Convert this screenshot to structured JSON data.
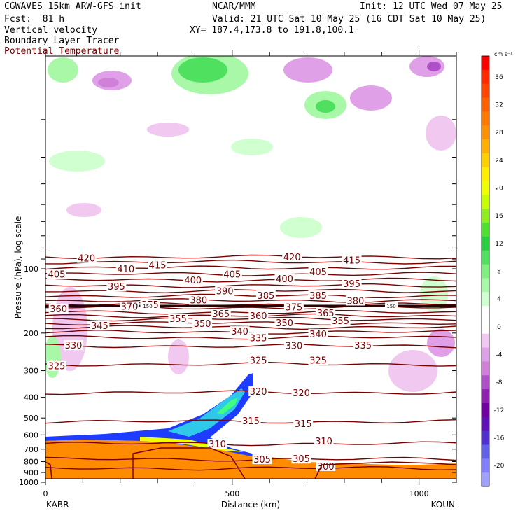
{
  "header": {
    "model": "CGWAVES 15km ARW-GFS init",
    "org": "NCAR/MMM",
    "init": "Init: 12 UTC Wed 07 May 25",
    "fcst": "Fcst:  81 h",
    "valid": "Valid: 21 UTC Sat 10 May 25 (16 CDT Sat 10 May 25)",
    "field1": "Vertical velocity",
    "field2": "Boundary Layer Tracer",
    "field3": "Potential Temperature",
    "xy": "XY= 187.4,173.8 to 191.8,100.1"
  },
  "colors": {
    "theta": "#7a0000",
    "terrain": "#ff8c00",
    "tracer": "#1e3cff"
  },
  "chart_data": {
    "type": "heatmap",
    "xlabel": "Distance (km)",
    "ylabel": "Pressure (hPa), log scale",
    "x_ticks": [
      "0",
      "500",
      "1000"
    ],
    "xlim": [
      0,
      1100
    ],
    "y_ticks": [
      "100",
      "200",
      "300",
      "400",
      "500",
      "600",
      "700",
      "800",
      "900",
      "1000"
    ],
    "y_log_scale": true,
    "x_endpoints": {
      "left": "KABR",
      "right": "KOUN"
    },
    "colorbar": {
      "unit": "cm s⁻¹",
      "levels": [
        {
          "label": "",
          "color": "#ff0000"
        },
        {
          "label": "36",
          "color": "#ff2a00"
        },
        {
          "label": "",
          "color": "#ff4500"
        },
        {
          "label": "32",
          "color": "#ff6000"
        },
        {
          "label": "",
          "color": "#ff7800"
        },
        {
          "label": "28",
          "color": "#ff9000"
        },
        {
          "label": "",
          "color": "#ffb000"
        },
        {
          "label": "24",
          "color": "#ffd000"
        },
        {
          "label": "",
          "color": "#ffee00"
        },
        {
          "label": "20",
          "color": "#f0ff00"
        },
        {
          "label": "",
          "color": "#c8ff00"
        },
        {
          "label": "16",
          "color": "#90ee20"
        },
        {
          "label": "",
          "color": "#50e030"
        },
        {
          "label": "12",
          "color": "#28d040"
        },
        {
          "label": "",
          "color": "#50e060"
        },
        {
          "label": "8",
          "color": "#80f080"
        },
        {
          "label": "",
          "color": "#a8f8a8"
        },
        {
          "label": "4",
          "color": "#d0ffd0"
        },
        {
          "label": "",
          "color": "#ffffff"
        },
        {
          "label": "0",
          "color": "#ffffff"
        },
        {
          "label": "",
          "color": "#f0c8f0"
        },
        {
          "label": "-4",
          "color": "#e0a0e8"
        },
        {
          "label": "",
          "color": "#d080d8"
        },
        {
          "label": "-8",
          "color": "#b050c8"
        },
        {
          "label": "",
          "color": "#9020b0"
        },
        {
          "label": "-12",
          "color": "#7000a0"
        },
        {
          "label": "",
          "color": "#6010b8"
        },
        {
          "label": "-16",
          "color": "#5030d0"
        },
        {
          "label": "",
          "color": "#6060e8"
        },
        {
          "label": "-20",
          "color": "#8080ff"
        },
        {
          "label": "",
          "color": "#a0a0ff"
        }
      ]
    },
    "theta_contour_labels": [
      "420",
      "410",
      "415",
      "405",
      "400",
      "395",
      "390",
      "385",
      "380",
      "375",
      "370",
      "365",
      "360",
      "355",
      "350",
      "345",
      "340",
      "335",
      "330",
      "325",
      "320",
      "315",
      "310",
      "305",
      "300"
    ],
    "theta_lines": [
      {
        "label": "420",
        "p": 88
      },
      {
        "label": "415",
        "p": 93
      },
      {
        "label": "410",
        "p": 99
      },
      {
        "label": "405",
        "p": 106
      },
      {
        "label": "400",
        "p": 113
      },
      {
        "label": "395",
        "p": 120
      },
      {
        "label": "390",
        "p": 127
      },
      {
        "label": "385",
        "p": 134
      },
      {
        "label": "380",
        "p": 141
      },
      {
        "label": "375",
        "p": 147
      },
      {
        "label": "370",
        "p": 152
      },
      {
        "label": "365",
        "p": 160
      },
      {
        "label": "360",
        "p": 166
      },
      {
        "label": "355",
        "p": 172
      },
      {
        "label": "350",
        "p": 180
      },
      {
        "label": "345",
        "p": 188
      },
      {
        "label": "340",
        "p": 198
      },
      {
        "label": "335",
        "p": 210
      },
      {
        "label": "330",
        "p": 230
      },
      {
        "label": "325",
        "p": 280
      },
      {
        "label": "320",
        "p": 380
      },
      {
        "label": "315",
        "p": 520
      },
      {
        "label": "310",
        "p": 660
      },
      {
        "label": "305",
        "p": 780
      },
      {
        "label": "300",
        "p": 860
      }
    ],
    "inline_labels": [
      {
        "text": "420",
        "x": 110,
        "p": 89
      },
      {
        "text": "410",
        "x": 215,
        "p": 100
      },
      {
        "text": "415",
        "x": 300,
        "p": 96
      },
      {
        "text": "405",
        "x": 30,
        "p": 106
      },
      {
        "text": "395",
        "x": 190,
        "p": 121
      },
      {
        "text": "400",
        "x": 395,
        "p": 113
      },
      {
        "text": "405",
        "x": 500,
        "p": 106
      },
      {
        "text": "420",
        "x": 660,
        "p": 88
      },
      {
        "text": "405",
        "x": 730,
        "p": 103
      },
      {
        "text": "415",
        "x": 820,
        "p": 91
      },
      {
        "text": "400",
        "x": 640,
        "p": 111
      },
      {
        "text": "395",
        "x": 820,
        "p": 117
      },
      {
        "text": "390",
        "x": 480,
        "p": 127
      },
      {
        "text": "385",
        "x": 590,
        "p": 133
      },
      {
        "text": "385",
        "x": 730,
        "p": 133
      },
      {
        "text": "380",
        "x": 410,
        "p": 140
      },
      {
        "text": "380",
        "x": 830,
        "p": 141
      },
      {
        "text": "375",
        "x": 280,
        "p": 147
      },
      {
        "text": "370",
        "x": 225,
        "p": 150
      },
      {
        "text": "360",
        "x": 35,
        "p": 154
      },
      {
        "text": "375",
        "x": 665,
        "p": 151
      },
      {
        "text": "365",
        "x": 470,
        "p": 162
      },
      {
        "text": "360",
        "x": 570,
        "p": 166
      },
      {
        "text": "365",
        "x": 750,
        "p": 161
      },
      {
        "text": "345",
        "x": 145,
        "p": 184
      },
      {
        "text": "355",
        "x": 355,
        "p": 171
      },
      {
        "text": "350",
        "x": 420,
        "p": 180
      },
      {
        "text": "350",
        "x": 640,
        "p": 179
      },
      {
        "text": "355",
        "x": 790,
        "p": 175
      },
      {
        "text": "340",
        "x": 520,
        "p": 196
      },
      {
        "text": "340",
        "x": 730,
        "p": 202
      },
      {
        "text": "330",
        "x": 75,
        "p": 228
      },
      {
        "text": "335",
        "x": 570,
        "p": 210
      },
      {
        "text": "330",
        "x": 665,
        "p": 229
      },
      {
        "text": "335",
        "x": 850,
        "p": 228
      },
      {
        "text": "325",
        "x": 30,
        "p": 285
      },
      {
        "text": "325",
        "x": 570,
        "p": 268
      },
      {
        "text": "325",
        "x": 730,
        "p": 268
      },
      {
        "text": "320",
        "x": 570,
        "p": 375
      },
      {
        "text": "320",
        "x": 685,
        "p": 380
      },
      {
        "text": "315",
        "x": 550,
        "p": 515
      },
      {
        "text": "315",
        "x": 690,
        "p": 530
      },
      {
        "text": "310",
        "x": 460,
        "p": 660
      },
      {
        "text": "310",
        "x": 745,
        "p": 640
      },
      {
        "text": "305",
        "x": 580,
        "p": 780
      },
      {
        "text": "305",
        "x": 685,
        "p": 775
      },
      {
        "text": "300",
        "x": 750,
        "p": 840
      }
    ],
    "tropopause_labels": [
      "150",
      "150"
    ]
  }
}
